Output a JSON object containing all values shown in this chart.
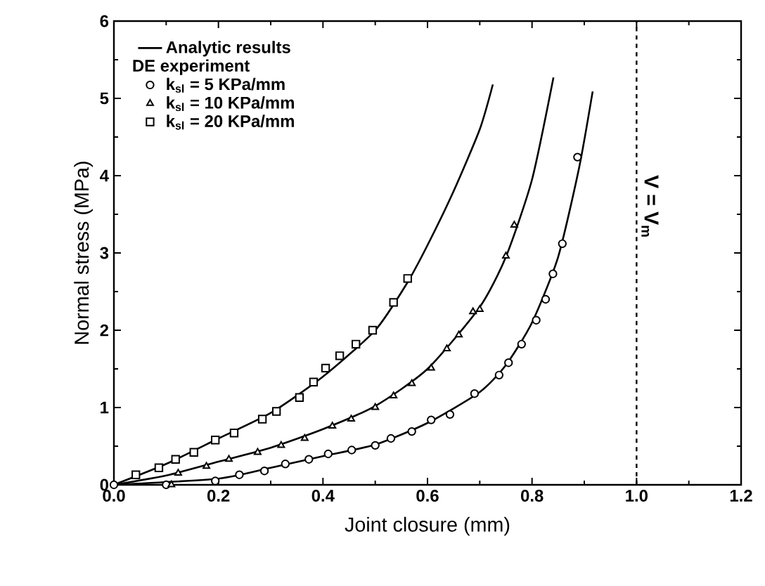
{
  "chart_data": {
    "type": "scatter",
    "xlabel": "Joint closure (mm)",
    "ylabel": "Normal stress (MPa)",
    "legend_title": "DE experiment",
    "xlim": [
      0,
      1.2
    ],
    "ylim": [
      0,
      6
    ],
    "xticks": [
      {
        "value": 0,
        "label": "0.0"
      },
      0.2,
      0.4,
      0.6,
      0.8,
      {
        "value": 1,
        "label": "1.0"
      },
      1.2
    ],
    "yticks": [
      0,
      1,
      2,
      3,
      4,
      5,
      6
    ],
    "legend": "top left",
    "grid": false,
    "ref_lines": [
      {
        "axis": "x",
        "value": 1.0,
        "label": "V = V$_{m}$",
        "line_style": "dashed",
        "color": "#000000"
      }
    ],
    "series": [
      {
        "name": "Analytic results",
        "type": "line",
        "color": "#000000",
        "marker": "none",
        "x": [
          0,
          0.1,
          0.2,
          0.3,
          0.4,
          0.5,
          0.56,
          0.6,
          0.65,
          0.7,
          0.725
        ],
        "values": [
          0,
          0.27,
          0.6,
          0.93,
          1.4,
          2.0,
          2.6,
          3.1,
          3.8,
          4.6,
          5.18
        ]
      },
      {
        "type": "line",
        "color": "#000000",
        "marker": "none",
        "x": [
          0,
          0.1,
          0.2,
          0.3,
          0.4,
          0.5,
          0.6,
          0.7,
          0.75,
          0.8,
          0.841
        ],
        "values": [
          0,
          0.12,
          0.3,
          0.48,
          0.72,
          1.02,
          1.5,
          2.3,
          2.95,
          3.95,
          5.27
        ]
      },
      {
        "type": "line",
        "color": "#000000",
        "marker": "none",
        "x": [
          0,
          0.2,
          0.3,
          0.4,
          0.5,
          0.6,
          0.7,
          0.75,
          0.8,
          0.85,
          0.89,
          0.916
        ],
        "values": [
          0,
          0.08,
          0.22,
          0.37,
          0.52,
          0.8,
          1.2,
          1.55,
          2.1,
          2.95,
          4.1,
          5.09
        ]
      },
      {
        "name": "k$_{sl}$ =  5 KPa/mm",
        "color": "#000000",
        "marker": "circle",
        "x": [
          0,
          0.1,
          0.194,
          0.24,
          0.288,
          0.328,
          0.373,
          0.41,
          0.455,
          0.5,
          0.53,
          0.57,
          0.607,
          0.643,
          0.69,
          0.737,
          0.755,
          0.78,
          0.808,
          0.826,
          0.84,
          0.858,
          0.887
        ],
        "values": [
          0,
          0.0,
          0.05,
          0.13,
          0.18,
          0.27,
          0.33,
          0.4,
          0.45,
          0.51,
          0.6,
          0.69,
          0.84,
          0.91,
          1.18,
          1.42,
          1.58,
          1.82,
          2.13,
          2.4,
          2.73,
          3.12,
          4.24
        ]
      },
      {
        "name": "k$_{sl}$ = 10 KPa/mm",
        "color": "#000000",
        "marker": "triangle",
        "x": [
          0.11,
          0.123,
          0.177,
          0.22,
          0.275,
          0.32,
          0.365,
          0.418,
          0.454,
          0.5,
          0.535,
          0.57,
          0.607,
          0.637,
          0.66,
          0.687,
          0.7,
          0.75,
          0.766
        ],
        "values": [
          0.0,
          0.15,
          0.24,
          0.33,
          0.42,
          0.51,
          0.6,
          0.76,
          0.85,
          1.0,
          1.15,
          1.31,
          1.51,
          1.76,
          1.94,
          2.24,
          2.27,
          2.96,
          3.36
        ]
      },
      {
        "name": "k$_{sl}$ = 20 KPa/mm",
        "color": "#000000",
        "marker": "square",
        "x": [
          0.042,
          0.086,
          0.118,
          0.153,
          0.194,
          0.23,
          0.284,
          0.311,
          0.355,
          0.382,
          0.405,
          0.432,
          0.463,
          0.495,
          0.535,
          0.562
        ],
        "values": [
          0.13,
          0.22,
          0.33,
          0.42,
          0.58,
          0.67,
          0.85,
          0.95,
          1.13,
          1.33,
          1.51,
          1.67,
          1.82,
          2.0,
          2.36,
          2.67
        ]
      }
    ]
  }
}
